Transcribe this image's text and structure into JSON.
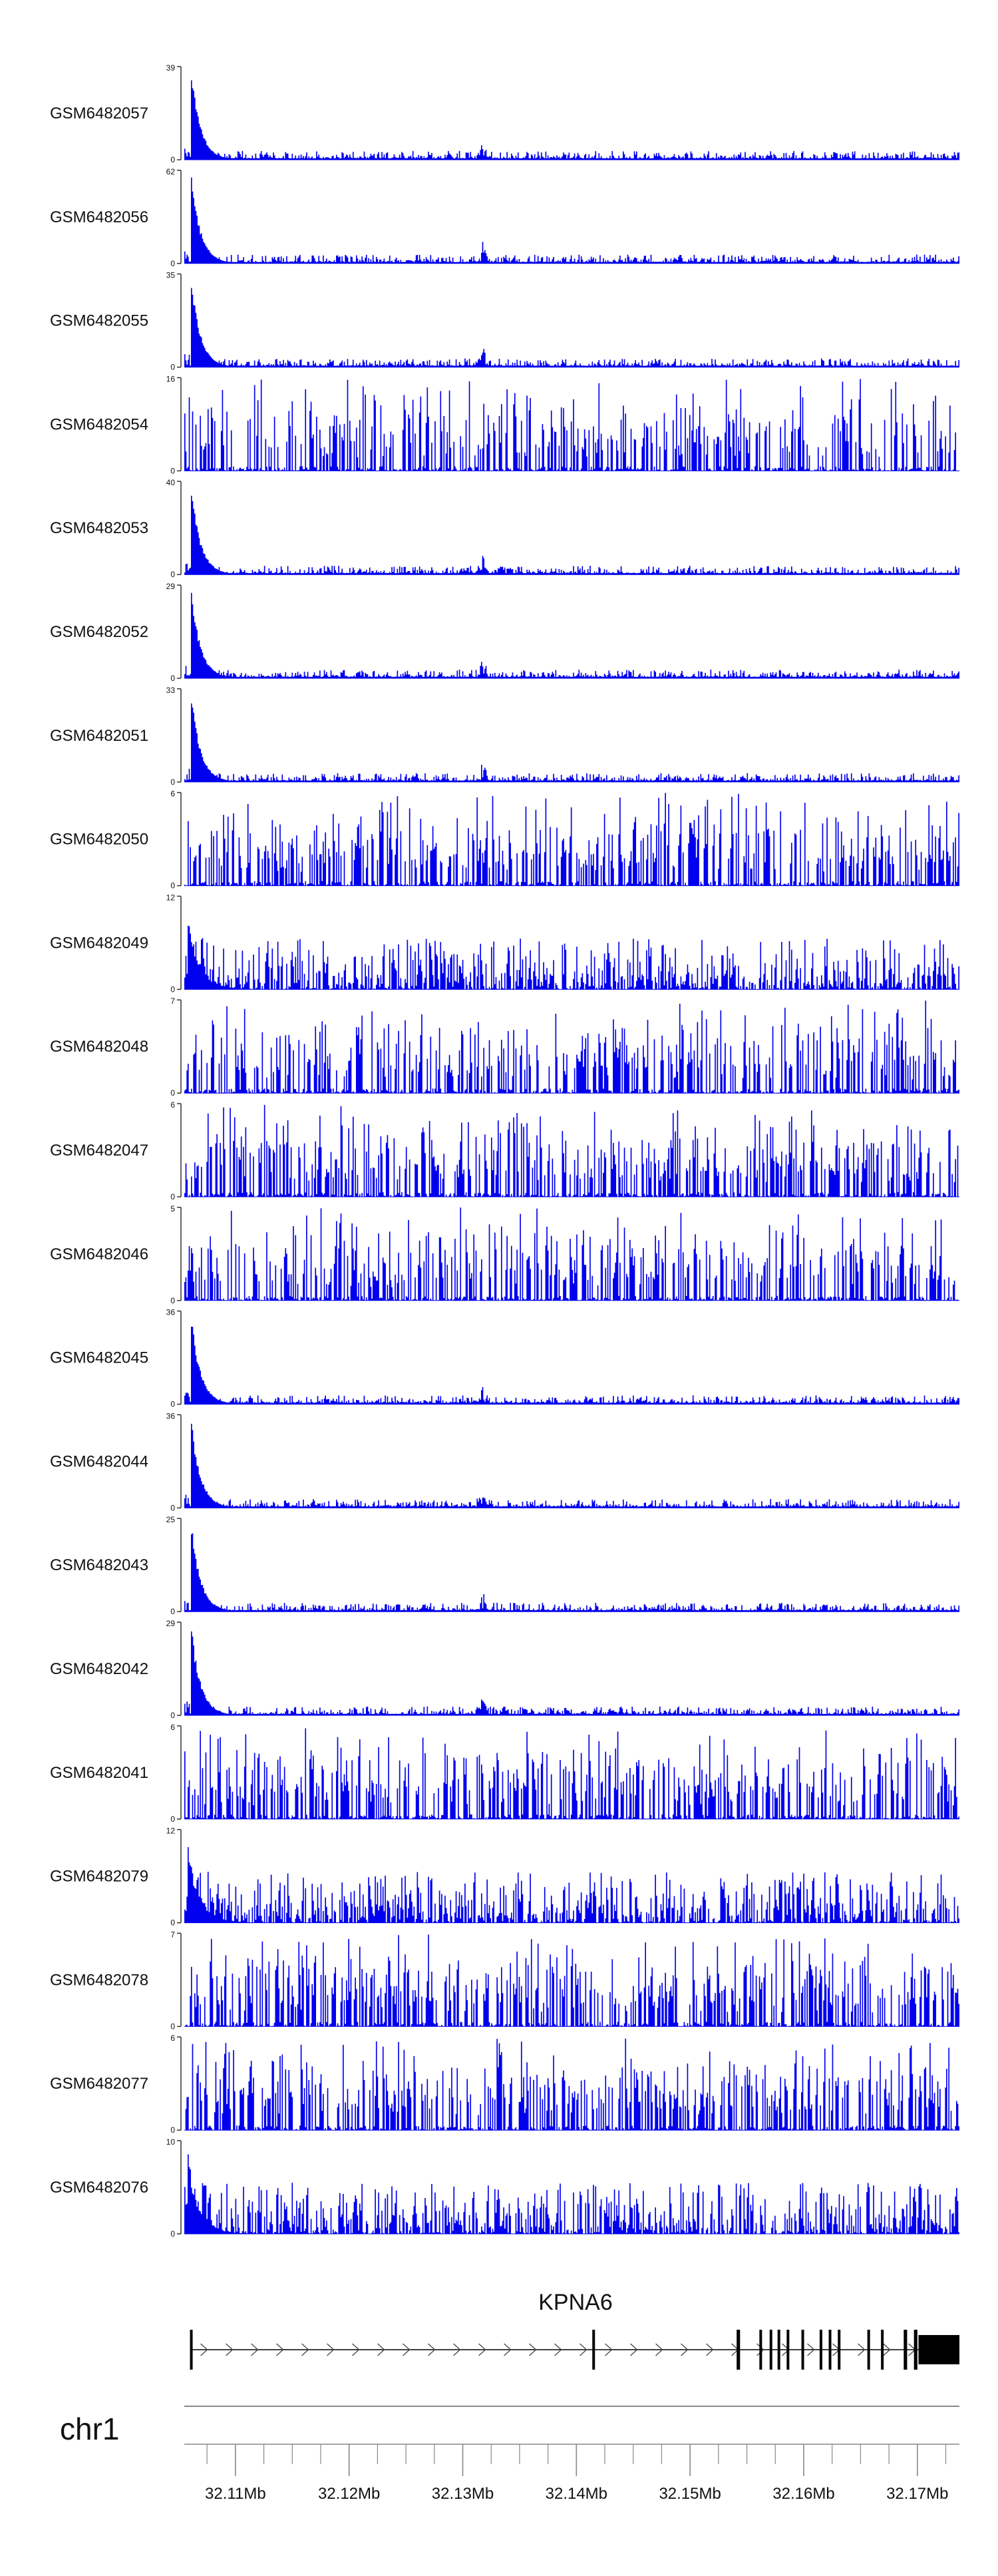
{
  "chart_data": {
    "type": "area",
    "chromosome": "chr1",
    "x_range_mb": [
      32.1055,
      32.1737
    ],
    "xticks_labeled": [
      "32.11Mb",
      "32.12Mb",
      "32.13Mb",
      "32.14Mb",
      "32.15Mb",
      "32.16Mb",
      "32.17Mb"
    ],
    "gene": {
      "name": "KPNA6",
      "strand": "+",
      "start_mb": 32.106,
      "end_mb": 32.1737,
      "exons_mb": [
        [
          32.106,
          32.1061
        ],
        [
          32.1414,
          32.1416
        ],
        [
          32.1541,
          32.1544
        ],
        [
          32.1561,
          32.1563
        ],
        [
          32.157,
          32.1572
        ],
        [
          32.1577,
          32.1579
        ],
        [
          32.1585,
          32.1587
        ],
        [
          32.1598,
          32.16
        ],
        [
          32.1614,
          32.1616
        ],
        [
          32.1622,
          32.1624
        ],
        [
          32.163,
          32.1632
        ],
        [
          32.1656,
          32.1658
        ],
        [
          32.1668,
          32.167
        ],
        [
          32.1688,
          32.1691
        ],
        [
          32.1697,
          32.17
        ],
        [
          32.1701,
          32.1737
        ]
      ]
    },
    "tracks": [
      {
        "name": "GSM6482057",
        "ymax": 39,
        "profile": "peak"
      },
      {
        "name": "GSM6482056",
        "ymax": 62,
        "profile": "peak"
      },
      {
        "name": "GSM6482055",
        "ymax": 35,
        "profile": "peak"
      },
      {
        "name": "GSM6482054",
        "ymax": 16,
        "profile": "flat"
      },
      {
        "name": "GSM6482053",
        "ymax": 40,
        "profile": "peak"
      },
      {
        "name": "GSM6482052",
        "ymax": 29,
        "profile": "peak"
      },
      {
        "name": "GSM6482051",
        "ymax": 33,
        "profile": "peak"
      },
      {
        "name": "GSM6482050",
        "ymax": 6,
        "profile": "flat"
      },
      {
        "name": "GSM6482049",
        "ymax": 12,
        "profile": "mid"
      },
      {
        "name": "GSM6482048",
        "ymax": 7,
        "profile": "flat"
      },
      {
        "name": "GSM6482047",
        "ymax": 6,
        "profile": "flat"
      },
      {
        "name": "GSM6482046",
        "ymax": 5,
        "profile": "flat"
      },
      {
        "name": "GSM6482045",
        "ymax": 36,
        "profile": "peak"
      },
      {
        "name": "GSM6482044",
        "ymax": 36,
        "profile": "peak"
      },
      {
        "name": "GSM6482043",
        "ymax": 25,
        "profile": "peak"
      },
      {
        "name": "GSM6482042",
        "ymax": 29,
        "profile": "peak"
      },
      {
        "name": "GSM6482041",
        "ymax": 6,
        "profile": "flat"
      },
      {
        "name": "GSM6482079",
        "ymax": 12,
        "profile": "mid"
      },
      {
        "name": "GSM6482078",
        "ymax": 7,
        "profile": "flat"
      },
      {
        "name": "GSM6482077",
        "ymax": 6,
        "profile": "flat"
      },
      {
        "name": "GSM6482076",
        "ymax": 10,
        "profile": "mid"
      }
    ],
    "colors": {
      "signal": "#0000ee",
      "axis": "#333333",
      "gene": "#000000",
      "ideogram": "#888888"
    }
  }
}
